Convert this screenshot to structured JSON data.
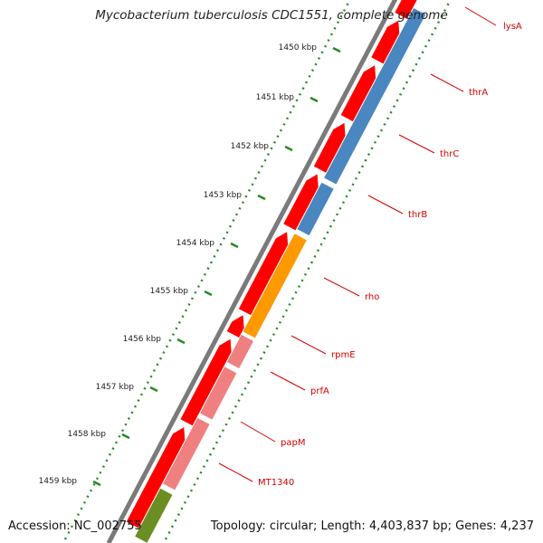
{
  "title": "Mycobacterium tuberculosis CDC1551, complete genome",
  "accession": "Accession: NC_002755",
  "summary": "Topology: circular; Length: 4,403,837 bp; Genes: 4,237",
  "ruler": {
    "unit": "kbp",
    "ticks": [
      "1450 kbp",
      "1451 kbp",
      "1452 kbp",
      "1453 kbp",
      "1454 kbp",
      "1455 kbp",
      "1456 kbp",
      "1457 kbp",
      "1458 kbp",
      "1459 kbp"
    ]
  },
  "colors": {
    "cds": "#ff0000",
    "rrna_like": "#4a86c0",
    "orange": "#ff9900",
    "pink": "#f08080",
    "olive": "#6b8e23",
    "label": "#d40000",
    "dots": "#228b22",
    "backbone": "#7a7a7a"
  },
  "gene_labels": [
    "lysA",
    "thrA",
    "thrC",
    "thrB",
    "rho",
    "rpmE",
    "prfA",
    "papM",
    "MT1340"
  ]
}
